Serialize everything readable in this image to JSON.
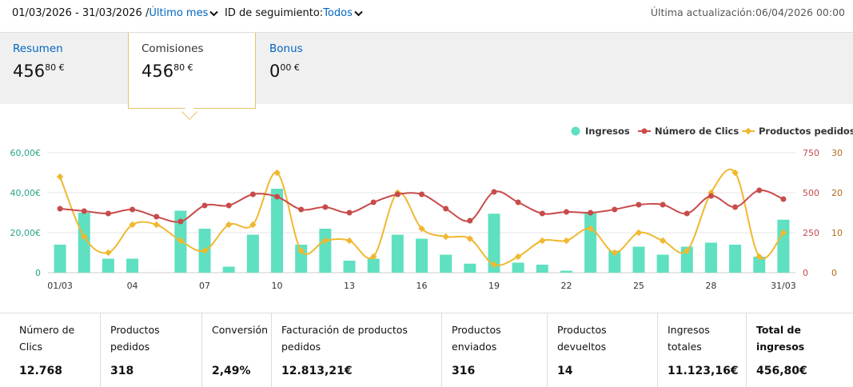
{
  "header": {
    "date_range": "01/03/2026 - 31/03/2026 /",
    "period_link": "Último mes",
    "tracking_label": "ID de seguimiento:",
    "tracking_value": "Todos",
    "updated": "Última actualización:06/04/2026 00:00"
  },
  "tabs": [
    {
      "label": "Resumen",
      "amount_main": "456",
      "amount_sup": "80 €"
    },
    {
      "label": "Comisiones",
      "amount_main": "456",
      "amount_sup": "80 €"
    },
    {
      "label": "Bonus",
      "amount_main": "0",
      "amount_sup": "00 €"
    }
  ],
  "colors": {
    "ingresos": "#5fe0c0",
    "clics": "#c84b4b",
    "productos": "#f0b830",
    "left_axis": "#2aa58a",
    "right_axis": "#b56a1e"
  },
  "chart_data": {
    "type": "bar",
    "categories": [
      "01/03",
      "02/03",
      "03/03",
      "04/03",
      "05/03",
      "06/03",
      "07/03",
      "08/03",
      "09/03",
      "10/03",
      "11/03",
      "12/03",
      "13/03",
      "14/03",
      "15/03",
      "16/03",
      "17/03",
      "18/03",
      "19/03",
      "20/03",
      "21/03",
      "22/03",
      "23/03",
      "24/03",
      "25/03",
      "26/03",
      "27/03",
      "28/03",
      "29/03",
      "30/03",
      "31/03"
    ],
    "x_tick_labels": [
      "01/03",
      "04",
      "07",
      "10",
      "13",
      "16",
      "19",
      "22",
      "25",
      "28",
      "31/03"
    ],
    "x_tick_indices": [
      0,
      3,
      6,
      9,
      12,
      15,
      18,
      21,
      24,
      27,
      30
    ],
    "legend": [
      "Ingresos",
      "Número de Clics",
      "Productos pedidos"
    ],
    "left_axis": {
      "ticks": [
        "0",
        "20,00€",
        "40,00€",
        "60,00€"
      ],
      "min": 0,
      "max": 60
    },
    "right_axis_clics": {
      "ticks": [
        "0",
        "250",
        "500",
        "750"
      ],
      "min": 0,
      "max": 750
    },
    "right_axis_productos": {
      "ticks": [
        "0",
        "10",
        "20",
        "30"
      ],
      "min": 0,
      "max": 30
    },
    "series": [
      {
        "name": "Ingresos",
        "axis": "left",
        "values": [
          14,
          30,
          7,
          7,
          0,
          31,
          22,
          3,
          19,
          42,
          14,
          22,
          6,
          7,
          19,
          17,
          9,
          4.5,
          29.5,
          5,
          4,
          1,
          30,
          11,
          13,
          9,
          13,
          15,
          14,
          8,
          26.5
        ]
      },
      {
        "name": "Número de Clics",
        "axis": "clics",
        "values": [
          400,
          385,
          370,
          395,
          350,
          320,
          420,
          420,
          490,
          475,
          395,
          410,
          375,
          440,
          490,
          490,
          400,
          325,
          505,
          440,
          370,
          380,
          375,
          395,
          425,
          425,
          370,
          480,
          410,
          515,
          460
        ]
      },
      {
        "name": "Productos pedidos",
        "axis": "productos",
        "values": [
          24,
          9,
          5,
          12,
          12,
          8,
          5.5,
          12,
          12,
          25,
          5.5,
          8,
          8,
          4,
          20,
          11,
          9,
          8.5,
          2,
          4,
          8,
          8,
          11,
          5,
          10,
          8,
          5.5,
          20,
          25,
          4,
          10
        ]
      }
    ]
  },
  "stats": [
    {
      "label": "Número de Clics",
      "value": "12.768"
    },
    {
      "label": "Productos pedidos",
      "value": "318"
    },
    {
      "label": "Conversión",
      "value": "2,49%"
    },
    {
      "label": "Facturación de productos pedidos",
      "value": "12.813,21€"
    },
    {
      "label": "Productos enviados",
      "value": "316"
    },
    {
      "label": "Productos devueltos",
      "value": "14"
    },
    {
      "label": "Ingresos totales",
      "value": "11.123,16€"
    },
    {
      "label": "Total de ingresos",
      "value": "456,80€"
    }
  ]
}
